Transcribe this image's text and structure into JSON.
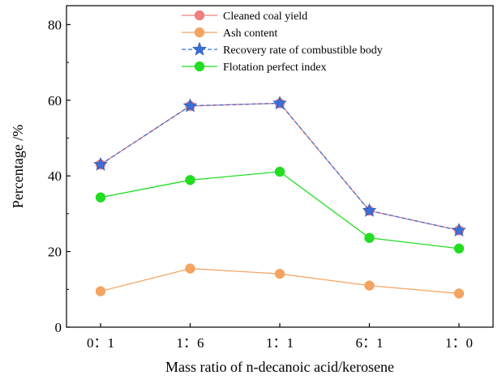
{
  "chart_data": {
    "type": "line",
    "title": "",
    "xlabel": "Mass ratio of n-decanoic acid/kerosene",
    "ylabel": "Percentage /%",
    "categories": [
      "0：1",
      "1：6",
      "1：1",
      "6：1",
      "1：0"
    ],
    "ylim": [
      0,
      85
    ],
    "yticks": [
      0,
      20,
      40,
      60,
      80
    ],
    "grid": false,
    "legend_position": "top-center",
    "series": [
      {
        "name": "Cleaned coal yield",
        "values": [
          43.0,
          58.5,
          59.2,
          30.8,
          25.6
        ],
        "color": "#f08080",
        "line_style": "solid",
        "marker": "circle"
      },
      {
        "name": "Ash content",
        "values": [
          9.5,
          15.5,
          14.1,
          11.0,
          8.9
        ],
        "color": "#f4a460",
        "line_style": "solid",
        "marker": "circle"
      },
      {
        "name": "Recovery rate of combustible body",
        "values": [
          43.0,
          58.5,
          59.2,
          30.8,
          25.6
        ],
        "color": "#3a6fd8",
        "line_style": "dashed",
        "marker": "star"
      },
      {
        "name": "Flotation perfect index",
        "values": [
          34.3,
          38.9,
          41.1,
          23.6,
          20.8
        ],
        "color": "#22dd22",
        "line_style": "solid",
        "marker": "circle"
      }
    ]
  }
}
